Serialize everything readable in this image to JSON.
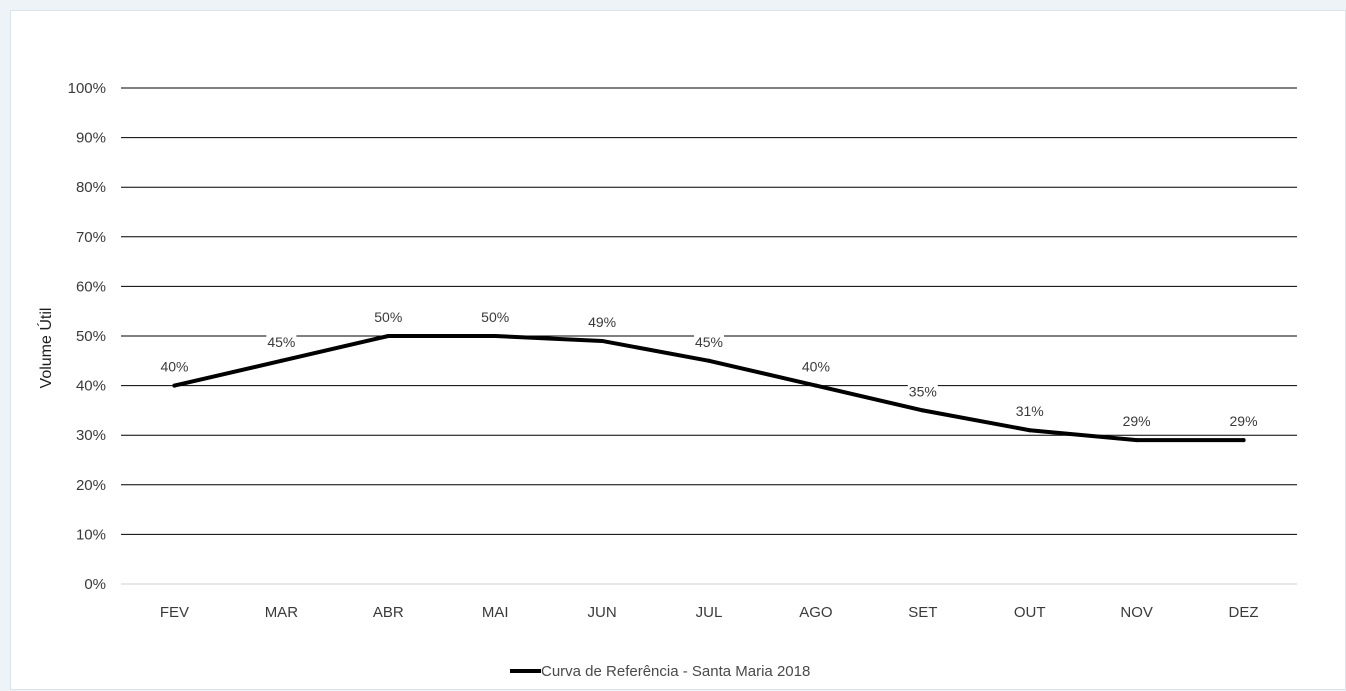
{
  "chart_data": {
    "type": "line",
    "categories": [
      "FEV",
      "MAR",
      "ABR",
      "MAI",
      "JUN",
      "JUL",
      "AGO",
      "SET",
      "OUT",
      "NOV",
      "DEZ"
    ],
    "series": [
      {
        "name": "Curva de Referência - Santa Maria 2018",
        "values": [
          40,
          45,
          50,
          50,
          49,
          45,
          40,
          35,
          31,
          29,
          29
        ],
        "labels": [
          "40%",
          "45%",
          "50%",
          "50%",
          "49%",
          "45%",
          "40%",
          "35%",
          "31%",
          "29%",
          "29%"
        ],
        "color": "#000000"
      }
    ],
    "yticks": [
      "0%",
      "10%",
      "20%",
      "30%",
      "40%",
      "50%",
      "60%",
      "70%",
      "80%",
      "90%",
      "100%"
    ],
    "ylabel": "Volume Útil",
    "xlabel": "",
    "title": "",
    "ylim": [
      0,
      100
    ],
    "grid": true,
    "legend_position": "bottom"
  }
}
